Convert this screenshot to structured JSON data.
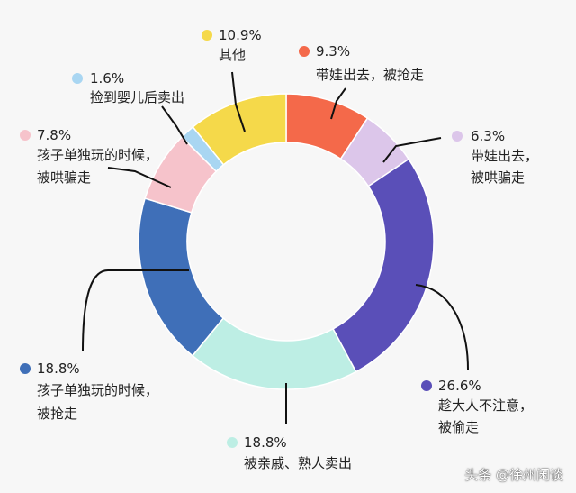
{
  "chart_data": {
    "type": "pie",
    "subtype": "donut",
    "series": [
      {
        "label": "带娃出去，被抢走",
        "percent": "9.3%",
        "value": 9.3,
        "color": "#f4694a",
        "text": [
          "带娃出去，被抢走"
        ]
      },
      {
        "label": "带娃出去，被哄骗走",
        "percent": "6.3%",
        "value": 6.3,
        "color": "#dcc6ea",
        "text": [
          "带娃出去，",
          "被哄骗走"
        ]
      },
      {
        "label": "趁大人不注意，被偷走",
        "percent": "26.6%",
        "value": 26.6,
        "color": "#5a4fb8",
        "text": [
          "趁大人不注意，",
          "被偷走"
        ]
      },
      {
        "label": "被亲戚、熟人卖出",
        "percent": "18.8%",
        "value": 18.8,
        "color": "#bdeee4",
        "text": [
          "被亲戚、熟人卖出"
        ]
      },
      {
        "label": "孩子单独玩的时候，被抢走",
        "percent": "18.8%",
        "value": 18.8,
        "color": "#3f6fb8",
        "text": [
          "孩子单独玩的时候，",
          "被抢走"
        ]
      },
      {
        "label": "孩子单独玩的时候，被哄骗走",
        "percent": "7.8%",
        "value": 7.8,
        "color": "#f6c3cb",
        "text": [
          "孩子单独玩的时候，",
          "被哄骗走"
        ]
      },
      {
        "label": "捡到婴儿后卖出",
        "percent": "1.6%",
        "value": 1.6,
        "color": "#a9d6f2",
        "text": [
          "捡到婴儿后卖出"
        ]
      },
      {
        "label": "其他",
        "percent": "10.9%",
        "value": 10.9,
        "color": "#f5d94a",
        "text": [
          "其他"
        ]
      }
    ]
  },
  "watermark": "头条 @徐州闲谈"
}
